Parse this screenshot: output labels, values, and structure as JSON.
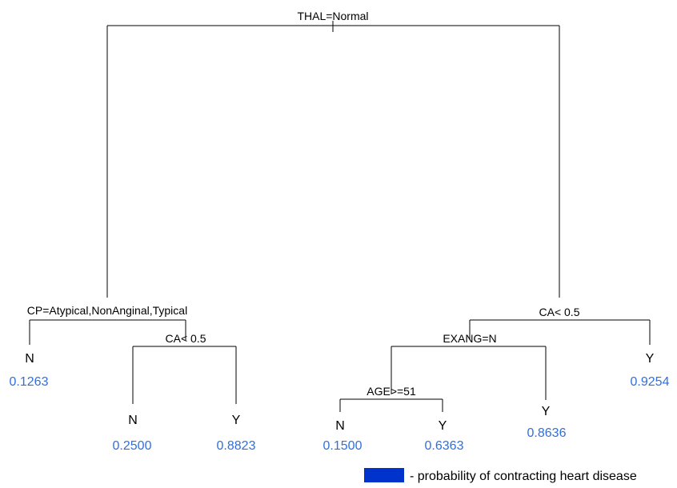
{
  "colors": {
    "probability": "#2f6fe0",
    "legend_swatch": "#0033cc",
    "line": "#000000"
  },
  "splits": {
    "root": "THAL=Normal",
    "cp": "CP=Atypical,NonAnginal,Typical",
    "ca_left": "CA< 0.5",
    "ca_right": "CA< 0.5",
    "exang": "EXANG=N",
    "age": "AGE>=51"
  },
  "leaves": {
    "l1": {
      "class": "N",
      "prob": "0.1263"
    },
    "l2": {
      "class": "N",
      "prob": "0.2500"
    },
    "l3": {
      "class": "Y",
      "prob": "0.8823"
    },
    "l4": {
      "class": "N",
      "prob": "0.1500"
    },
    "l5": {
      "class": "Y",
      "prob": "0.6363"
    },
    "l6": {
      "class": "Y",
      "prob": "0.8636"
    },
    "l7": {
      "class": "Y",
      "prob": "0.9254"
    }
  },
  "legend": {
    "text": "- probability of contracting heart disease"
  }
}
